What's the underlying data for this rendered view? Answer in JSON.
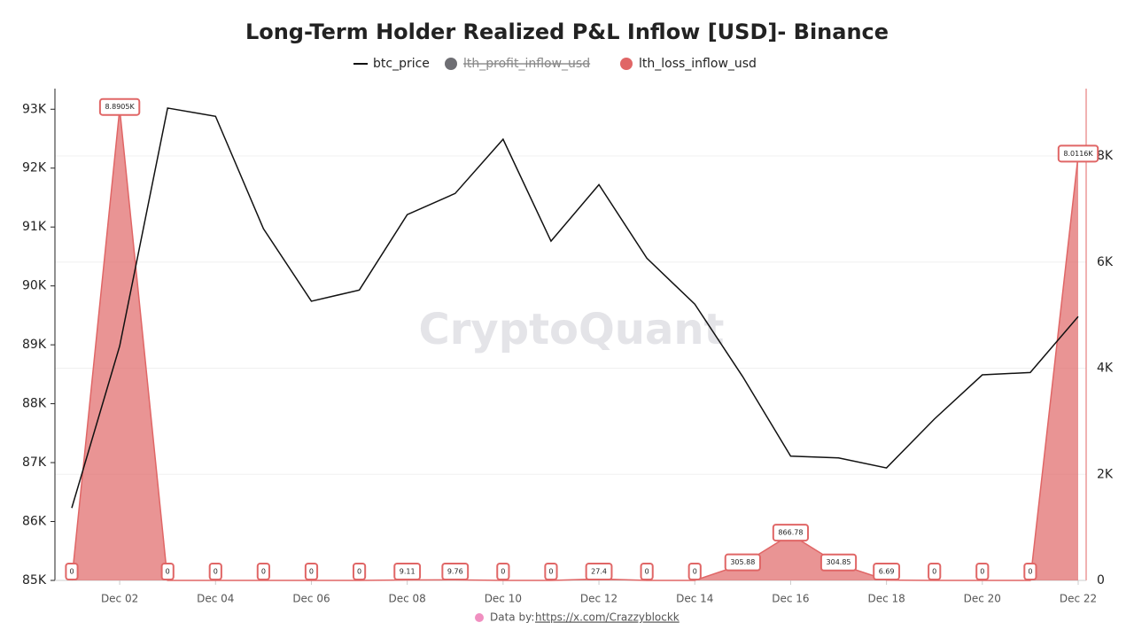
{
  "chart_data": {
    "type": "line-area",
    "title": "Long-Term Holder Realized P&L Inflow [USD]- Binance",
    "watermark": "CryptoQuant",
    "source": "Data by:",
    "source_link": "https://x.com/Crazzyblockk",
    "categories": [
      null,
      "Dec 02",
      null,
      "Dec 04",
      null,
      "Dec 06",
      null,
      "Dec 08",
      null,
      "Dec 10",
      null,
      "Dec 12",
      null,
      "Dec 14",
      null,
      "Dec 16",
      null,
      "Dec 18",
      null,
      "Dec 20",
      null,
      "Dec 22"
    ],
    "series": [
      {
        "name": "btc_price",
        "color": "#111111",
        "axis": "y",
        "values": [
          86230,
          88980,
          93020,
          92880,
          90970,
          89740,
          89930,
          91210,
          91570,
          92490,
          90760,
          91720,
          90470,
          89690,
          88460,
          87110,
          87080,
          86910,
          87740,
          88490,
          88530,
          89480
        ]
      },
      {
        "name": "lth_profit_inflow_usd",
        "color": "#6e6e73",
        "hidden": true
      },
      {
        "name": "lth_loss_inflow_usd",
        "color": "#e06666",
        "axis": "y2",
        "values": [
          0,
          8890.5,
          0,
          0,
          0,
          0,
          0,
          9.11,
          9.76,
          0,
          0,
          27.4,
          0,
          0,
          305.88,
          866.78,
          304.85,
          6.69,
          0,
          0,
          0,
          8011.6
        ],
        "value_labels": [
          "0",
          "8.8905K",
          "0",
          "0",
          "0",
          "0",
          "0",
          "9.11",
          "9.76",
          "0",
          "0",
          "27.4",
          "0",
          "0",
          "305.88",
          "866.78",
          "304.85",
          "6.69",
          "0",
          "0",
          "0",
          "8.0116K"
        ]
      }
    ],
    "ylim": [
      85000,
      93350
    ],
    "yticks": [
      {
        "value": 85000,
        "label": "85K"
      },
      {
        "value": 86000,
        "label": "86K"
      },
      {
        "value": 87000,
        "label": "87K"
      },
      {
        "value": 88000,
        "label": "88K"
      },
      {
        "value": 89000,
        "label": "89K"
      },
      {
        "value": 90000,
        "label": "90K"
      },
      {
        "value": 91000,
        "label": "91K"
      },
      {
        "value": 92000,
        "label": "92K"
      },
      {
        "value": 93000,
        "label": "93K"
      }
    ],
    "y2lim": [
      0,
      9270
    ],
    "y2ticks": [
      0,
      {
        "value": 2000,
        "label": "2K"
      },
      {
        "value": 4000,
        "label": "4K"
      },
      {
        "value": 6000,
        "label": "6K"
      },
      {
        "value": 8000,
        "label": "8K"
      }
    ],
    "grid": true
  }
}
